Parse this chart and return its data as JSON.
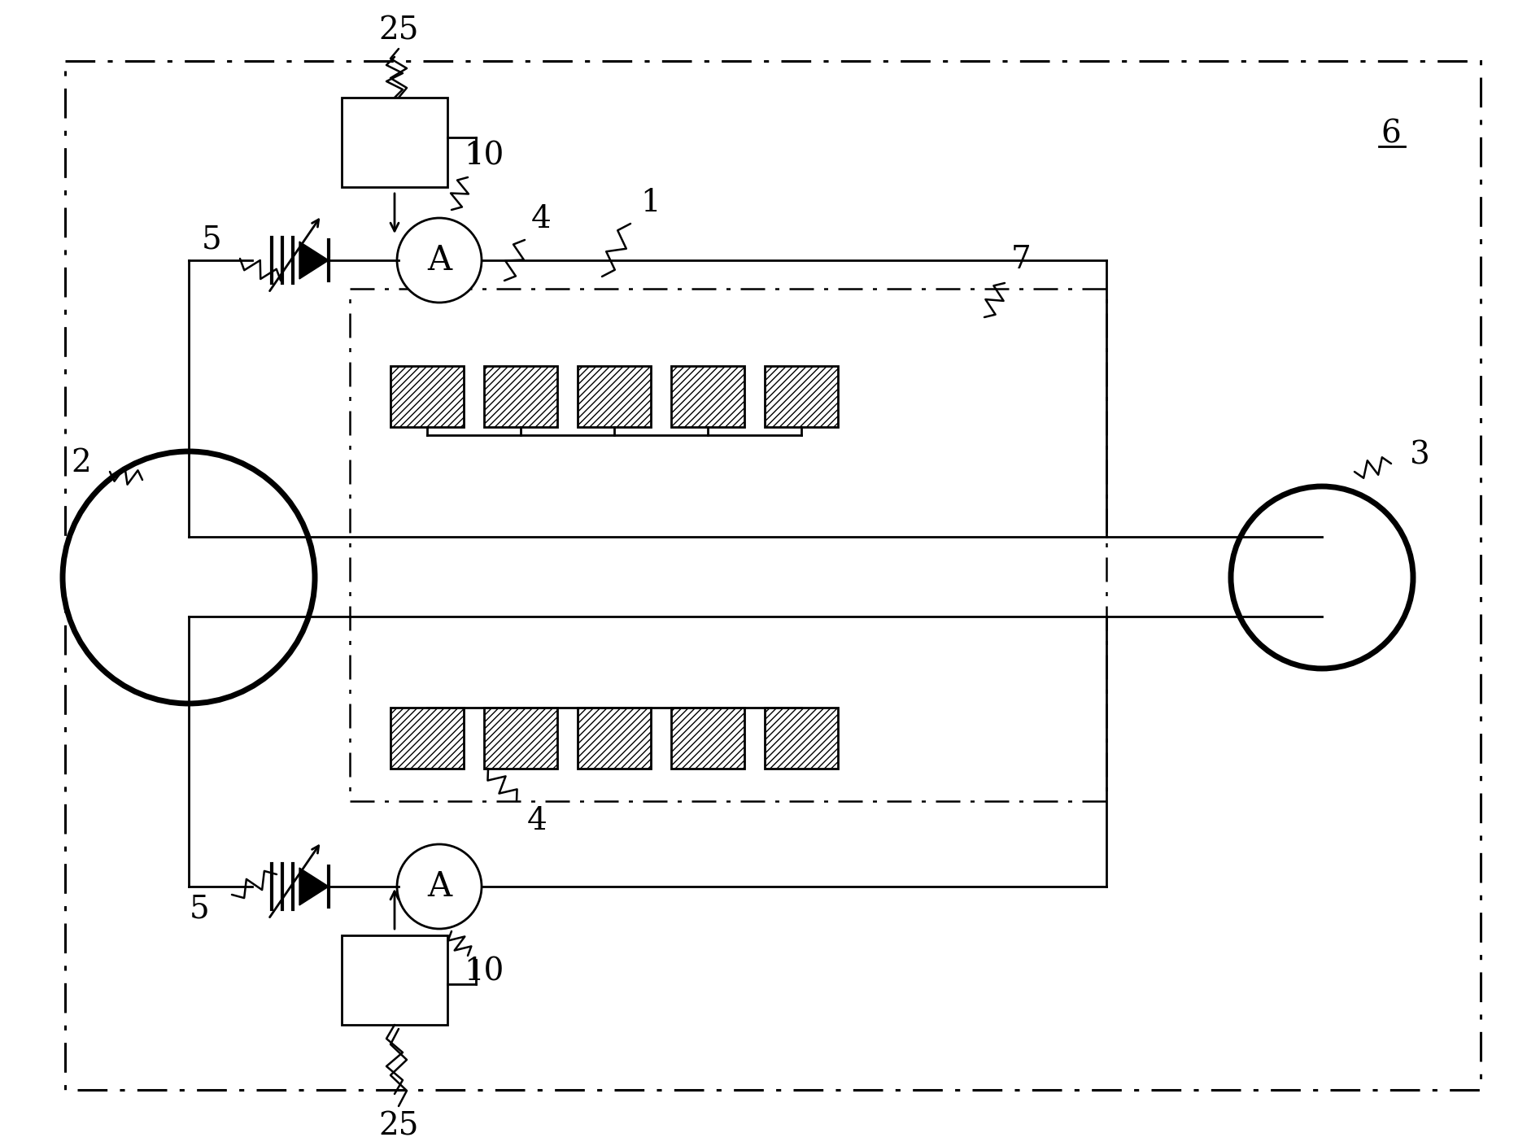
{
  "bg_color": "#ffffff",
  "line_color": "#000000",
  "figsize": [
    18.93,
    14.09
  ],
  "dpi": 100
}
